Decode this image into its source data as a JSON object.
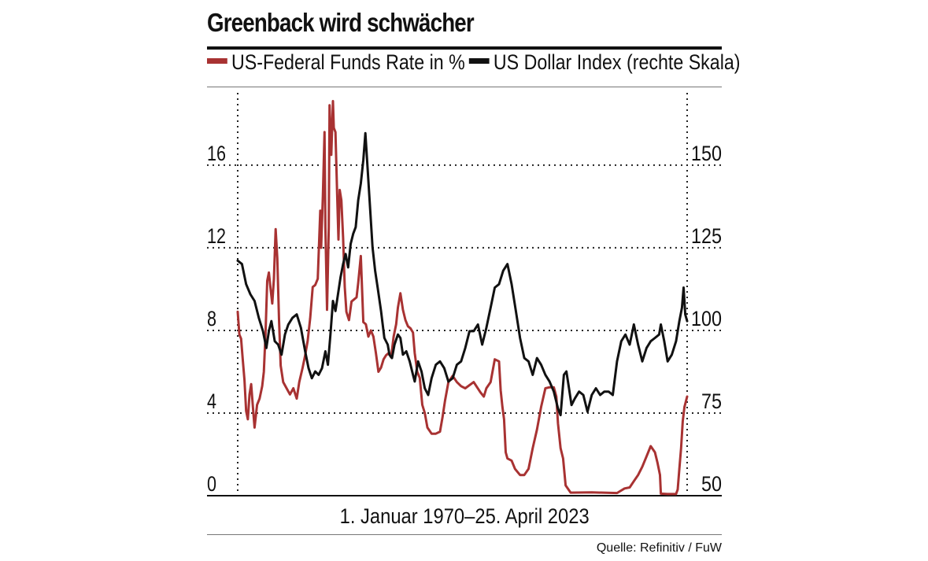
{
  "title": "Greenback wird schwächer",
  "legend": {
    "rate_label": "US-Federal Funds Rate in %",
    "dollar_label": "US Dollar Index (rechte Skala)"
  },
  "colors": {
    "rate": "#a83232",
    "dollar": "#111111",
    "grid": "#222222"
  },
  "xlabel": "1. Januar 1970–25. April 2023",
  "source": "Quelle: Refinitiv / FuW",
  "chart_data": {
    "type": "line",
    "title": "Greenback wird schwächer",
    "xlabel": "1. Januar 1970–25. April 2023",
    "x_range": [
      1970.0,
      2023.32
    ],
    "y_left": {
      "label": "US-Federal Funds Rate in %",
      "range": [
        0,
        19.5
      ],
      "ticks": [
        0,
        4,
        8,
        12,
        16
      ]
    },
    "y_right": {
      "label": "US Dollar Index",
      "range": [
        50,
        170
      ],
      "ticks": [
        50,
        75,
        100,
        125,
        150
      ]
    },
    "grid": true,
    "series": [
      {
        "name": "US-Federal Funds Rate in %",
        "axis": "left",
        "x": [
          1970.0,
          1970.2,
          1970.4,
          1970.6,
          1970.8,
          1971.0,
          1971.2,
          1971.4,
          1971.6,
          1971.8,
          1972.0,
          1972.3,
          1972.6,
          1972.9,
          1973.1,
          1973.3,
          1973.5,
          1973.7,
          1973.9,
          1974.1,
          1974.3,
          1974.5,
          1974.7,
          1974.9,
          1975.1,
          1975.4,
          1975.8,
          1976.2,
          1976.6,
          1977.0,
          1977.3,
          1977.7,
          1978.0,
          1978.3,
          1978.6,
          1978.9,
          1979.2,
          1979.5,
          1979.8,
          1979.9,
          1980.1,
          1980.3,
          1980.4,
          1980.6,
          1980.8,
          1980.9,
          1981.1,
          1981.3,
          1981.4,
          1981.6,
          1981.8,
          1981.95,
          1982.1,
          1982.3,
          1982.5,
          1982.7,
          1982.9,
          1983.2,
          1983.5,
          1983.8,
          1984.1,
          1984.3,
          1984.6,
          1984.9,
          1985.2,
          1985.5,
          1985.8,
          1986.1,
          1986.4,
          1986.7,
          1987.0,
          1987.3,
          1987.6,
          1987.9,
          1988.2,
          1988.5,
          1988.8,
          1989.0,
          1989.3,
          1989.6,
          1989.9,
          1990.2,
          1990.5,
          1990.8,
          1991.0,
          1991.3,
          1991.6,
          1991.9,
          1992.2,
          1992.5,
          1993.0,
          1993.5,
          1994.0,
          1994.3,
          1994.6,
          1995.0,
          1995.5,
          1996.0,
          1996.5,
          1997.0,
          1998.0,
          1998.8,
          1999.2,
          1999.5,
          2000.0,
          2000.5,
          2001.0,
          2001.2,
          2001.4,
          2001.6,
          2001.8,
          2002.0,
          2002.5,
          2002.9,
          2003.5,
          2004.0,
          2004.5,
          2005.0,
          2005.5,
          2006.0,
          2006.5,
          2007.0,
          2007.5,
          2007.8,
          2008.0,
          2008.3,
          2008.6,
          2008.9,
          2009.5,
          2012.0,
          2015.0,
          2015.9,
          2016.5,
          2017.0,
          2017.5,
          2018.0,
          2018.5,
          2019.0,
          2019.5,
          2019.8,
          2020.1,
          2020.2,
          2021.0,
          2022.0,
          2022.2,
          2022.4,
          2022.6,
          2022.8,
          2023.0,
          2023.32
        ],
        "values": [
          8.9,
          7.8,
          7.6,
          6.6,
          5.6,
          4.1,
          3.7,
          4.9,
          5.4,
          4.3,
          3.3,
          4.4,
          4.7,
          5.3,
          6.0,
          7.8,
          10.4,
          10.8,
          10.0,
          9.3,
          10.5,
          12.9,
          11.5,
          8.5,
          6.3,
          5.5,
          5.2,
          4.9,
          5.2,
          4.7,
          5.5,
          6.2,
          6.8,
          7.5,
          8.6,
          10.1,
          10.2,
          10.5,
          13.8,
          12.0,
          14.5,
          17.6,
          13.0,
          9.0,
          13.0,
          18.9,
          16.5,
          19.1,
          17.8,
          17.6,
          14.5,
          12.4,
          14.8,
          14.3,
          12.5,
          10.1,
          8.9,
          8.5,
          9.4,
          9.5,
          9.6,
          10.3,
          11.6,
          8.4,
          8.3,
          7.7,
          8.0,
          7.7,
          6.9,
          6.0,
          6.2,
          6.6,
          6.8,
          6.9,
          6.7,
          7.7,
          8.3,
          9.1,
          9.8,
          9.0,
          8.5,
          8.2,
          8.1,
          7.9,
          6.9,
          6.0,
          5.7,
          4.4,
          4.0,
          3.3,
          3.0,
          3.0,
          3.1,
          3.8,
          4.6,
          5.5,
          5.8,
          5.5,
          5.3,
          5.2,
          5.5,
          5.0,
          4.8,
          5.2,
          5.5,
          6.6,
          6.5,
          5.1,
          4.3,
          3.7,
          2.1,
          1.8,
          1.7,
          1.3,
          1.0,
          1.0,
          1.3,
          2.3,
          3.2,
          4.3,
          5.2,
          5.25,
          5.25,
          4.8,
          3.5,
          2.3,
          1.8,
          0.5,
          0.15,
          0.16,
          0.13,
          0.35,
          0.4,
          0.7,
          1.0,
          1.4,
          1.9,
          2.4,
          2.1,
          1.6,
          1.0,
          0.1,
          0.08,
          0.08,
          0.3,
          1.3,
          2.3,
          3.6,
          4.3,
          4.8
        ]
      },
      {
        "name": "US Dollar Index",
        "axis": "right",
        "x": [
          1970.0,
          1970.5,
          1971.0,
          1971.5,
          1972.0,
          1972.5,
          1973.0,
          1973.4,
          1973.7,
          1974.0,
          1974.4,
          1974.8,
          1975.2,
          1975.6,
          1976.0,
          1976.5,
          1977.0,
          1977.5,
          1978.0,
          1978.4,
          1978.8,
          1979.2,
          1979.6,
          1980.0,
          1980.4,
          1980.7,
          1981.0,
          1981.3,
          1981.6,
          1981.9,
          1982.2,
          1982.5,
          1982.8,
          1983.1,
          1983.4,
          1983.7,
          1984.0,
          1984.3,
          1984.6,
          1984.9,
          1985.15,
          1985.4,
          1985.7,
          1986.0,
          1986.3,
          1986.6,
          1987.0,
          1987.4,
          1987.8,
          1988.0,
          1988.3,
          1988.6,
          1989.0,
          1989.3,
          1989.6,
          1990.0,
          1990.4,
          1990.8,
          1991.0,
          1991.4,
          1991.8,
          1992.2,
          1992.6,
          1993.0,
          1993.5,
          1994.0,
          1994.5,
          1995.0,
          1995.5,
          1996.0,
          1996.5,
          1997.0,
          1997.5,
          1998.0,
          1998.5,
          1999.0,
          1999.5,
          2000.0,
          2000.5,
          2001.0,
          2001.5,
          2002.0,
          2002.5,
          2003.0,
          2003.5,
          2004.0,
          2004.5,
          2005.0,
          2005.5,
          2006.0,
          2006.5,
          2007.0,
          2007.5,
          2008.0,
          2008.3,
          2008.7,
          2009.0,
          2009.3,
          2009.6,
          2010.0,
          2010.5,
          2011.0,
          2011.5,
          2012.0,
          2012.5,
          2013.0,
          2013.5,
          2014.0,
          2014.5,
          2015.0,
          2015.5,
          2016.0,
          2016.5,
          2017.0,
          2017.5,
          2018.0,
          2018.5,
          2019.0,
          2019.5,
          2020.0,
          2020.2,
          2020.6,
          2021.0,
          2021.5,
          2022.0,
          2022.4,
          2022.7,
          2022.9,
          2023.1,
          2023.32
        ],
        "values": [
          120,
          119,
          113,
          110,
          108,
          103,
          99,
          94,
          99,
          102,
          96,
          95,
          92,
          98,
          101,
          103,
          104,
          100,
          93,
          88,
          85,
          87,
          86,
          88,
          93,
          89,
          98,
          108,
          105,
          110,
          115,
          119,
          122,
          118,
          125,
          128,
          130,
          138,
          143,
          150,
          158,
          148,
          136,
          124,
          117,
          112,
          105,
          97,
          95,
          92,
          91,
          95,
          98,
          97,
          92,
          93,
          90,
          86,
          84,
          90,
          87,
          82,
          80,
          85,
          89,
          90,
          88,
          84,
          85,
          89,
          90,
          94,
          99,
          99,
          101,
          95,
          100,
          106,
          112,
          113,
          117,
          119,
          113,
          105,
          97,
          91,
          90,
          86,
          91,
          89,
          86,
          84,
          81,
          76,
          74,
          86,
          87,
          82,
          77,
          79,
          81,
          80,
          75,
          80,
          82,
          80,
          81,
          81,
          80,
          90,
          96,
          98,
          95,
          101,
          95,
          90,
          94,
          96,
          97,
          98,
          101,
          96,
          90,
          92,
          96,
          102,
          106,
          112,
          104,
          102
        ]
      }
    ]
  }
}
